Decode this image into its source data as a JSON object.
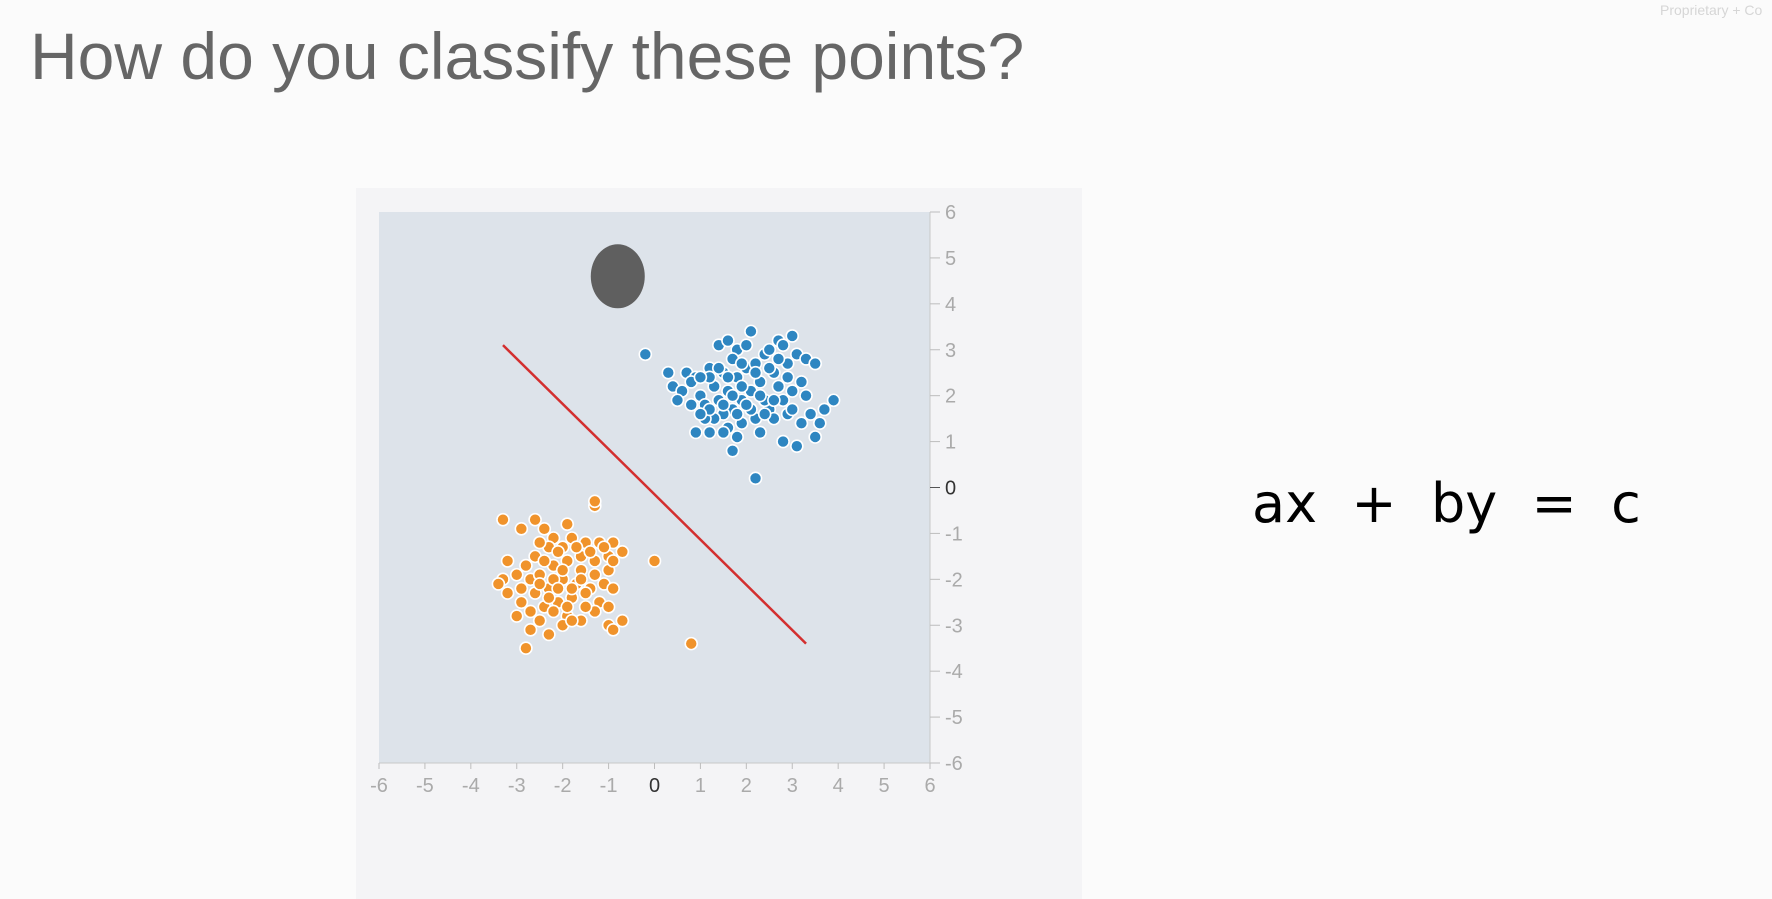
{
  "slide": {
    "title": "How do you classify these points?",
    "watermark": "Proprietary + Co",
    "equation": "ax  +  by  =  c"
  },
  "colors": {
    "plot_background": "#dde3ea",
    "blue_class": "#2e86c1",
    "orange_class": "#f0932b",
    "decision_line": "#d32f2f",
    "marker": "#5f5f5f"
  },
  "chart_data": {
    "type": "scatter",
    "title": "",
    "xlabel": "",
    "ylabel": "",
    "xlim": [
      -6,
      6
    ],
    "ylim": [
      -6,
      6
    ],
    "grid": false,
    "x_ticks": [
      "-6",
      "-5",
      "-4",
      "-3",
      "-2",
      "-1",
      "0",
      "1",
      "2",
      "3",
      "4",
      "5",
      "6"
    ],
    "y_ticks": [
      "6",
      "5",
      "4",
      "3",
      "2",
      "1",
      "0",
      "-1",
      "-2",
      "-3",
      "-4",
      "-5",
      "-6"
    ],
    "y_axis_side": "right",
    "marker_point": {
      "x": -0.8,
      "y": 4.6
    },
    "decision_line": {
      "x1": -3.3,
      "y1": 3.1,
      "x2": 3.3,
      "y2": -3.4
    },
    "series": [
      {
        "color": "blue",
        "points": [
          [
            -0.2,
            2.9
          ],
          [
            0.3,
            2.5
          ],
          [
            0.7,
            2.5
          ],
          [
            0.9,
            2.4
          ],
          [
            0.4,
            2.2
          ],
          [
            0.6,
            2.1
          ],
          [
            0.8,
            2.3
          ],
          [
            0.5,
            1.9
          ],
          [
            1.0,
            2.0
          ],
          [
            1.2,
            2.6
          ],
          [
            1.4,
            3.1
          ],
          [
            1.6,
            3.2
          ],
          [
            1.8,
            3.0
          ],
          [
            2.1,
            3.4
          ],
          [
            2.0,
            3.1
          ],
          [
            1.7,
            2.8
          ],
          [
            1.5,
            2.5
          ],
          [
            1.3,
            2.2
          ],
          [
            1.1,
            1.8
          ],
          [
            1.4,
            1.9
          ],
          [
            1.6,
            2.1
          ],
          [
            1.8,
            2.4
          ],
          [
            2.0,
            2.6
          ],
          [
            2.2,
            2.7
          ],
          [
            2.4,
            2.9
          ],
          [
            2.7,
            3.2
          ],
          [
            3.0,
            3.3
          ],
          [
            2.8,
            3.1
          ],
          [
            3.1,
            2.9
          ],
          [
            2.9,
            2.7
          ],
          [
            2.6,
            2.5
          ],
          [
            2.3,
            2.3
          ],
          [
            2.1,
            2.1
          ],
          [
            1.9,
            1.9
          ],
          [
            1.7,
            1.7
          ],
          [
            1.5,
            1.6
          ],
          [
            1.3,
            1.5
          ],
          [
            1.1,
            1.5
          ],
          [
            0.9,
            1.2
          ],
          [
            1.2,
            1.2
          ],
          [
            1.6,
            1.3
          ],
          [
            1.9,
            1.4
          ],
          [
            2.2,
            1.5
          ],
          [
            2.5,
            1.7
          ],
          [
            2.8,
            1.9
          ],
          [
            3.0,
            2.1
          ],
          [
            3.2,
            2.3
          ],
          [
            3.3,
            2.8
          ],
          [
            3.5,
            2.7
          ],
          [
            2.7,
            2.2
          ],
          [
            2.4,
            1.9
          ],
          [
            2.1,
            1.7
          ],
          [
            1.8,
            1.6
          ],
          [
            1.5,
            1.8
          ],
          [
            1.2,
            1.7
          ],
          [
            1.0,
            1.6
          ],
          [
            2.6,
            1.5
          ],
          [
            2.9,
            1.6
          ],
          [
            3.2,
            1.4
          ],
          [
            3.4,
            1.6
          ],
          [
            3.6,
            1.4
          ],
          [
            3.5,
            1.1
          ],
          [
            3.1,
            0.9
          ],
          [
            2.8,
            1.0
          ],
          [
            1.7,
            0.8
          ],
          [
            1.8,
            1.1
          ],
          [
            2.2,
            0.2
          ],
          [
            3.9,
            1.9
          ],
          [
            3.7,
            1.7
          ],
          [
            2.3,
            2.0
          ],
          [
            1.6,
            2.4
          ],
          [
            1.9,
            2.2
          ],
          [
            2.5,
            2.6
          ],
          [
            2.0,
            1.8
          ],
          [
            1.4,
            2.6
          ],
          [
            2.7,
            2.8
          ],
          [
            1.2,
            2.4
          ],
          [
            0.8,
            1.8
          ],
          [
            2.4,
            1.6
          ],
          [
            3.0,
            1.7
          ],
          [
            1.7,
            2.0
          ],
          [
            2.2,
            2.5
          ],
          [
            1.0,
            2.4
          ],
          [
            2.9,
            2.4
          ],
          [
            2.5,
            3.0
          ],
          [
            1.9,
            2.7
          ],
          [
            2.3,
            1.2
          ],
          [
            1.5,
            1.2
          ],
          [
            2.6,
            1.9
          ],
          [
            3.3,
            2.0
          ]
        ]
      },
      {
        "color": "orange",
        "points": [
          [
            -3.3,
            -0.7
          ],
          [
            -2.6,
            -0.7
          ],
          [
            -2.4,
            -0.9
          ],
          [
            -1.9,
            -0.8
          ],
          [
            -1.3,
            -0.4
          ],
          [
            -1.3,
            -0.3
          ],
          [
            -2.9,
            -0.9
          ],
          [
            -2.2,
            -1.1
          ],
          [
            -1.8,
            -1.1
          ],
          [
            -1.5,
            -1.2
          ],
          [
            -1.2,
            -1.2
          ],
          [
            -0.9,
            -1.2
          ],
          [
            -0.7,
            -1.4
          ],
          [
            -1.0,
            -1.5
          ],
          [
            -1.3,
            -1.6
          ],
          [
            -1.6,
            -1.5
          ],
          [
            -2.0,
            -1.3
          ],
          [
            -2.3,
            -1.3
          ],
          [
            -2.6,
            -1.5
          ],
          [
            -2.8,
            -1.7
          ],
          [
            -3.0,
            -1.9
          ],
          [
            -3.2,
            -1.6
          ],
          [
            -3.3,
            -2.0
          ],
          [
            -3.4,
            -2.1
          ],
          [
            -3.2,
            -2.3
          ],
          [
            -2.9,
            -2.2
          ],
          [
            -2.7,
            -2.0
          ],
          [
            -2.5,
            -1.9
          ],
          [
            -2.2,
            -1.7
          ],
          [
            -1.9,
            -1.6
          ],
          [
            -1.6,
            -1.8
          ],
          [
            -1.3,
            -1.9
          ],
          [
            -1.0,
            -1.8
          ],
          [
            -0.9,
            -1.6
          ],
          [
            -1.1,
            -2.1
          ],
          [
            -1.4,
            -2.2
          ],
          [
            -1.7,
            -2.1
          ],
          [
            -2.0,
            -2.0
          ],
          [
            -2.3,
            -2.2
          ],
          [
            -2.6,
            -2.3
          ],
          [
            -2.9,
            -2.5
          ],
          [
            -2.7,
            -2.7
          ],
          [
            -2.4,
            -2.6
          ],
          [
            -2.1,
            -2.5
          ],
          [
            -1.8,
            -2.4
          ],
          [
            -1.5,
            -2.3
          ],
          [
            -1.2,
            -2.5
          ],
          [
            -0.9,
            -2.2
          ],
          [
            -1.0,
            -2.6
          ],
          [
            -1.3,
            -2.7
          ],
          [
            -1.6,
            -2.9
          ],
          [
            -1.9,
            -2.8
          ],
          [
            -2.2,
            -2.7
          ],
          [
            -2.5,
            -2.9
          ],
          [
            -2.7,
            -3.1
          ],
          [
            -2.0,
            -3.0
          ],
          [
            -1.8,
            -2.9
          ],
          [
            -1.0,
            -3.0
          ],
          [
            -0.7,
            -2.9
          ],
          [
            -0.9,
            -3.1
          ],
          [
            -3.0,
            -2.8
          ],
          [
            -2.8,
            -3.5
          ],
          [
            -2.3,
            -3.2
          ],
          [
            -2.5,
            -1.2
          ],
          [
            -2.1,
            -1.4
          ],
          [
            -1.7,
            -1.3
          ],
          [
            -1.4,
            -1.4
          ],
          [
            -2.4,
            -1.6
          ],
          [
            -2.0,
            -1.8
          ],
          [
            -1.6,
            -2.0
          ],
          [
            -2.2,
            -2.0
          ],
          [
            -1.8,
            -2.2
          ],
          [
            -2.5,
            -2.1
          ],
          [
            -1.9,
            -2.6
          ],
          [
            -2.3,
            -2.4
          ],
          [
            -1.5,
            -2.6
          ],
          [
            -2.1,
            -2.2
          ],
          [
            0.0,
            -1.6
          ],
          [
            0.8,
            -3.4
          ],
          [
            -1.1,
            -1.3
          ]
        ]
      }
    ]
  }
}
